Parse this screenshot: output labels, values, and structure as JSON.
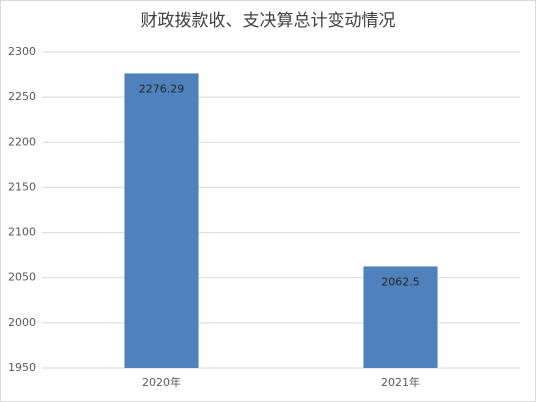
{
  "chart_data": {
    "type": "bar",
    "title": "财政拨款收、支决算总计变动情况",
    "categories": [
      "2020年",
      "2021年"
    ],
    "values": [
      2276.29,
      2062.5
    ],
    "color": "#4f81bd",
    "ylim": [
      1950,
      2300
    ],
    "yticks": [
      1950,
      2000,
      2050,
      2100,
      2150,
      2200,
      2250,
      2300
    ],
    "grid": true
  }
}
